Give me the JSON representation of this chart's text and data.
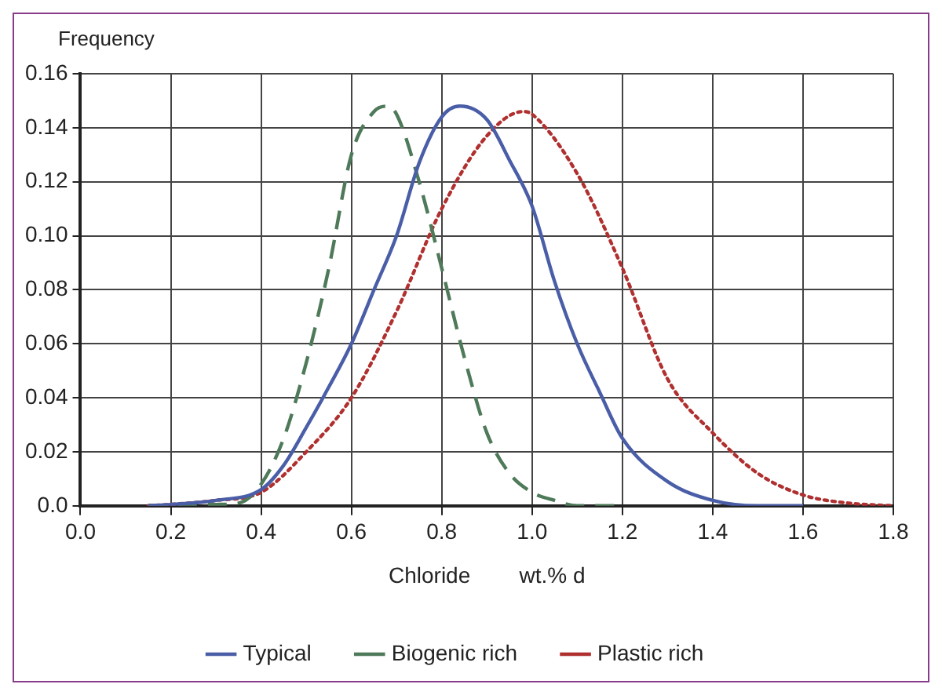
{
  "chart_data": {
    "type": "line",
    "ylabel": "Frequency",
    "xlabel": "Chloride        wt.% d",
    "xlim": [
      0,
      1.8
    ],
    "xticks": [
      {
        "value": 0,
        "label": "0.0"
      },
      0.2,
      0.4,
      0.6,
      0.8,
      {
        "value": 1,
        "label": "1.0"
      },
      1.2,
      1.4,
      1.6,
      1.8
    ],
    "ylim": [
      0,
      0.16
    ],
    "yticks": [
      {
        "value": 0,
        "label": "0.0"
      },
      0.02,
      0.04,
      0.06,
      0.08,
      {
        "value": 0.1,
        "label": "0.10"
      },
      0.12,
      0.14,
      0.16
    ],
    "grid": true,
    "legend": "bottom",
    "marker": "none",
    "series": [
      {
        "name": "Typical",
        "color": "#4a5ea8",
        "line_style": "solid",
        "x": [
          0.15,
          0.2,
          0.3,
          0.4,
          0.45,
          0.5,
          0.55,
          0.6,
          0.65,
          0.7,
          0.75,
          0.8,
          0.84,
          0.9,
          0.95,
          1.0,
          1.05,
          1.1,
          1.15,
          1.2,
          1.3,
          1.4,
          1.5,
          1.6
        ],
        "values": [
          0,
          0.0005,
          0.002,
          0.006,
          0.015,
          0.029,
          0.044,
          0.06,
          0.08,
          0.1,
          0.127,
          0.144,
          0.148,
          0.143,
          0.128,
          0.111,
          0.083,
          0.06,
          0.042,
          0.025,
          0.009,
          0.002,
          0,
          0
        ]
      },
      {
        "name": "Biogenic rich",
        "color": "#4e7a5a",
        "line_style": "dashed",
        "x": [
          0.15,
          0.3,
          0.35,
          0.4,
          0.45,
          0.5,
          0.55,
          0.6,
          0.65,
          0.68,
          0.7,
          0.75,
          0.8,
          0.85,
          0.9,
          0.95,
          1.0,
          1.05,
          1.1,
          1.2
        ],
        "values": [
          0,
          0.0005,
          0.001,
          0.008,
          0.025,
          0.053,
          0.088,
          0.13,
          0.146,
          0.148,
          0.145,
          0.12,
          0.088,
          0.055,
          0.027,
          0.012,
          0.005,
          0.002,
          0,
          0
        ]
      },
      {
        "name": "Plastic rich",
        "color": "#b03030",
        "line_style": "dotted",
        "x": [
          0.15,
          0.2,
          0.3,
          0.4,
          0.5,
          0.6,
          0.7,
          0.8,
          0.9,
          0.98,
          1.0,
          1.1,
          1.2,
          1.3,
          1.4,
          1.5,
          1.6,
          1.7,
          1.8
        ],
        "values": [
          0,
          0.0005,
          0.002,
          0.005,
          0.02,
          0.04,
          0.072,
          0.11,
          0.137,
          0.146,
          0.145,
          0.123,
          0.088,
          0.047,
          0.027,
          0.012,
          0.004,
          0.001,
          0
        ]
      }
    ]
  }
}
